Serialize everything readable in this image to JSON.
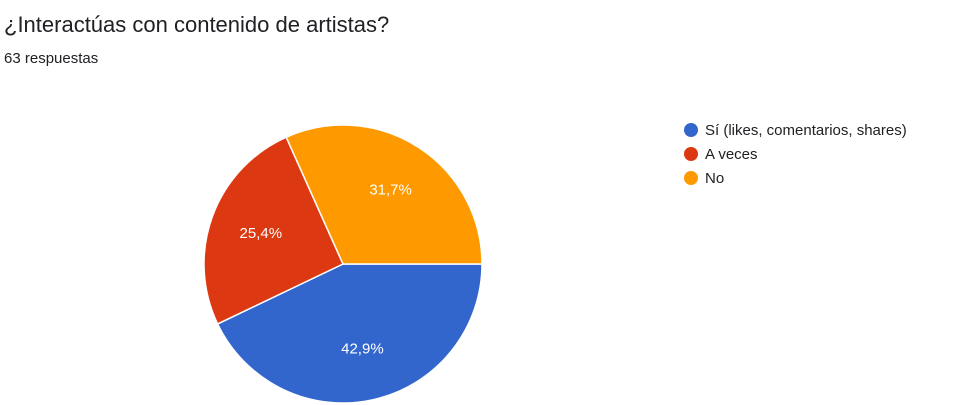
{
  "chart_data": {
    "type": "pie",
    "title": "¿Interactúas con contenido de artistas?",
    "subtitle": "63 respuestas",
    "categories": [
      "Sí (likes, comentarios, shares)",
      "A veces",
      "No"
    ],
    "values": [
      42.9,
      25.4,
      31.7
    ],
    "value_labels": [
      "42,9%",
      "25,4%",
      "31,7%"
    ],
    "colors": [
      "#3366cc",
      "#dc3912",
      "#ff9900"
    ],
    "legend_position": "right"
  }
}
